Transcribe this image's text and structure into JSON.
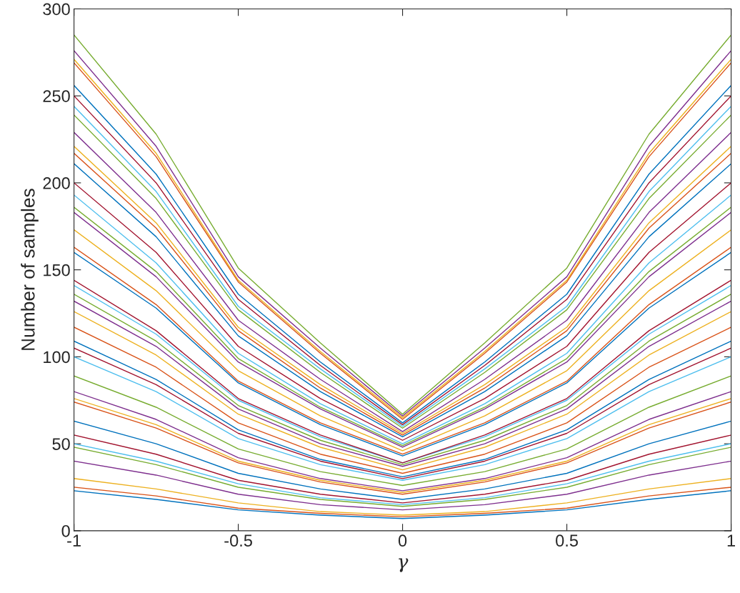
{
  "chart_data": {
    "type": "line",
    "xlabel": "γ",
    "ylabel": "Number of samples",
    "x": [
      -1,
      -0.75,
      -0.5,
      -0.25,
      0,
      0.25,
      0.5,
      0.75,
      1
    ],
    "xlim": [
      -1,
      1
    ],
    "xticks": [
      -1,
      -0.5,
      0,
      0.5,
      1
    ],
    "ylim": [
      0,
      300
    ],
    "yticks": [
      0,
      50,
      100,
      150,
      200,
      250,
      300
    ],
    "marker": "none",
    "line_style": "solid",
    "series": [
      {
        "color": "#0072bd",
        "values": [
          23,
          18,
          12,
          9,
          7,
          9,
          12,
          18,
          23
        ]
      },
      {
        "color": "#d95319",
        "values": [
          25,
          20,
          13,
          10,
          8,
          10,
          13,
          20,
          25
        ]
      },
      {
        "color": "#edb120",
        "values": [
          30,
          24,
          16,
          11,
          9,
          11,
          16,
          24,
          30
        ]
      },
      {
        "color": "#7e2f8e",
        "values": [
          40,
          32,
          21,
          15,
          12,
          15,
          21,
          32,
          40
        ]
      },
      {
        "color": "#77ac30",
        "values": [
          48,
          38,
          25,
          18,
          14,
          18,
          25,
          38,
          48
        ]
      },
      {
        "color": "#4dbeee",
        "values": [
          50,
          40,
          27,
          19,
          15,
          19,
          27,
          40,
          50
        ]
      },
      {
        "color": "#a2142f",
        "values": [
          55,
          44,
          29,
          21,
          16,
          21,
          29,
          44,
          55
        ]
      },
      {
        "color": "#0072bd",
        "values": [
          63,
          50,
          33,
          24,
          18,
          24,
          33,
          50,
          63
        ]
      },
      {
        "color": "#d95319",
        "values": [
          74,
          59,
          39,
          28,
          21,
          28,
          39,
          59,
          74
        ]
      },
      {
        "color": "#edb120",
        "values": [
          76,
          61,
          40,
          29,
          22,
          29,
          40,
          61,
          76
        ]
      },
      {
        "color": "#7e2f8e",
        "values": [
          80,
          64,
          42,
          30,
          23,
          30,
          42,
          64,
          80
        ]
      },
      {
        "color": "#77ac30",
        "values": [
          89,
          71,
          47,
          34,
          26,
          34,
          47,
          71,
          89
        ]
      },
      {
        "color": "#4dbeee",
        "values": [
          100,
          80,
          53,
          38,
          29,
          38,
          53,
          80,
          100
        ]
      },
      {
        "color": "#a2142f",
        "values": [
          105,
          84,
          56,
          40,
          30,
          40,
          56,
          84,
          105
        ]
      },
      {
        "color": "#0072bd",
        "values": [
          109,
          87,
          58,
          41,
          31,
          41,
          58,
          87,
          109
        ]
      },
      {
        "color": "#d95319",
        "values": [
          117,
          94,
          62,
          44,
          33,
          44,
          62,
          94,
          117
        ]
      },
      {
        "color": "#edb120",
        "values": [
          126,
          101,
          67,
          48,
          35,
          48,
          67,
          101,
          126
        ]
      },
      {
        "color": "#7e2f8e",
        "values": [
          132,
          106,
          70,
          50,
          37,
          50,
          70,
          106,
          132
        ]
      },
      {
        "color": "#77ac30",
        "values": [
          136,
          109,
          72,
          52,
          38,
          52,
          72,
          109,
          136
        ]
      },
      {
        "color": "#4dbeee",
        "values": [
          141,
          113,
          75,
          54,
          39,
          54,
          75,
          113,
          141
        ]
      },
      {
        "color": "#a2142f",
        "values": [
          144,
          115,
          76,
          55,
          39,
          55,
          76,
          115,
          144
        ]
      },
      {
        "color": "#0072bd",
        "values": [
          160,
          128,
          85,
          61,
          43,
          61,
          85,
          128,
          160
        ]
      },
      {
        "color": "#d95319",
        "values": [
          163,
          130,
          86,
          62,
          44,
          62,
          86,
          130,
          163
        ]
      },
      {
        "color": "#edb120",
        "values": [
          173,
          138,
          92,
          66,
          46,
          66,
          92,
          138,
          173
        ]
      },
      {
        "color": "#7e2f8e",
        "values": [
          183,
          146,
          97,
          70,
          48,
          70,
          97,
          146,
          183
        ]
      },
      {
        "color": "#77ac30",
        "values": [
          186,
          149,
          99,
          71,
          49,
          71,
          99,
          149,
          186
        ]
      },
      {
        "color": "#4dbeee",
        "values": [
          193,
          154,
          102,
          73,
          50,
          73,
          102,
          154,
          193
        ]
      },
      {
        "color": "#a2142f",
        "values": [
          200,
          160,
          106,
          76,
          52,
          76,
          106,
          160,
          200
        ]
      },
      {
        "color": "#0072bd",
        "values": [
          211,
          169,
          112,
          80,
          54,
          80,
          112,
          169,
          211
        ]
      },
      {
        "color": "#d95319",
        "values": [
          217,
          174,
          115,
          82,
          55,
          82,
          115,
          174,
          217
        ]
      },
      {
        "color": "#edb120",
        "values": [
          221,
          177,
          117,
          84,
          56,
          84,
          117,
          177,
          221
        ]
      },
      {
        "color": "#7e2f8e",
        "values": [
          229,
          183,
          121,
          87,
          57,
          87,
          121,
          183,
          229
        ]
      },
      {
        "color": "#77ac30",
        "values": [
          239,
          191,
          127,
          91,
          59,
          91,
          127,
          191,
          239
        ]
      },
      {
        "color": "#4dbeee",
        "values": [
          244,
          195,
          129,
          93,
          60,
          93,
          129,
          195,
          244
        ]
      },
      {
        "color": "#a2142f",
        "values": [
          250,
          200,
          133,
          95,
          61,
          95,
          133,
          200,
          250
        ]
      },
      {
        "color": "#0072bd",
        "values": [
          256,
          205,
          136,
          97,
          62,
          97,
          136,
          205,
          256
        ]
      },
      {
        "color": "#d95319",
        "values": [
          269,
          215,
          143,
          102,
          64,
          102,
          143,
          215,
          269
        ]
      },
      {
        "color": "#edb120",
        "values": [
          271,
          217,
          144,
          103,
          65,
          103,
          144,
          217,
          271
        ]
      },
      {
        "color": "#7e2f8e",
        "values": [
          276,
          221,
          146,
          105,
          66,
          105,
          146,
          221,
          276
        ]
      },
      {
        "color": "#77ac30",
        "values": [
          285,
          228,
          151,
          108,
          67,
          108,
          151,
          228,
          285
        ]
      }
    ]
  }
}
